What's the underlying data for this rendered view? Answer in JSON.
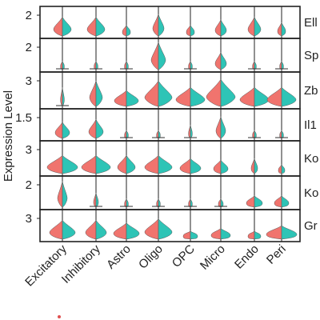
{
  "chart_data": {
    "type": "split-violin",
    "ylabel": "Expression Level",
    "categories": [
      "Excitatory",
      "Inhibitory",
      "Astro",
      "Oligo",
      "OPC",
      "Micro",
      "Endo",
      "Peri"
    ],
    "colors": {
      "left": "#f0746e",
      "right": "#2ec4b6",
      "grid": "#222222",
      "point": "#e05050"
    },
    "rows": [
      {
        "gene": "Ell",
        "ytick": "2",
        "widths": [
          0.55,
          0.55,
          0.25,
          0.35,
          0.25,
          0.35,
          0.4,
          0.25
        ],
        "heights": [
          0.7,
          0.7,
          0.4,
          0.8,
          0.4,
          0.6,
          0.7,
          0.5
        ]
      },
      {
        "gene": "Sp",
        "ytick": "2",
        "widths": [
          0.12,
          0.12,
          0.12,
          0.45,
          0.12,
          0.35,
          0.12,
          0.12
        ],
        "heights": [
          0.3,
          0.3,
          0.3,
          0.95,
          0.3,
          0.6,
          0.3,
          0.3
        ]
      },
      {
        "gene": "Zb",
        "ytick": "3",
        "widths": [
          0.12,
          0.4,
          0.75,
          0.85,
          0.9,
          0.9,
          0.9,
          0.9
        ],
        "heights": [
          0.6,
          0.8,
          0.5,
          0.8,
          0.6,
          0.85,
          0.6,
          0.6
        ]
      },
      {
        "gene": "Il1",
        "ytick": "1.5",
        "widths": [
          0.45,
          0.45,
          0.12,
          0.12,
          0.12,
          0.3,
          0.12,
          0.12
        ],
        "heights": [
          0.6,
          0.7,
          0.3,
          0.3,
          0.5,
          0.8,
          0.3,
          0.3
        ]
      },
      {
        "gene": "Ko",
        "ytick": "3",
        "widths": [
          0.95,
          0.9,
          0.55,
          0.85,
          0.65,
          0.45,
          0.2,
          0.2
        ],
        "heights": [
          0.6,
          0.6,
          0.6,
          0.6,
          0.5,
          0.45,
          0.5,
          0.3
        ]
      },
      {
        "gene": "Ko",
        "ytick": "2",
        "widths": [
          0.3,
          0.15,
          0.12,
          0.12,
          0.12,
          0.15,
          0.5,
          0.45
        ],
        "heights": [
          0.9,
          0.5,
          0.3,
          0.3,
          0.3,
          0.3,
          0.4,
          0.4
        ]
      },
      {
        "gene": "Gr",
        "ytick": "3",
        "widths": [
          0.8,
          0.65,
          0.8,
          0.85,
          0.45,
          0.6,
          0.4,
          0.95
        ],
        "heights": [
          0.7,
          0.7,
          0.6,
          0.75,
          0.3,
          0.4,
          0.3,
          0.5
        ]
      }
    ]
  }
}
